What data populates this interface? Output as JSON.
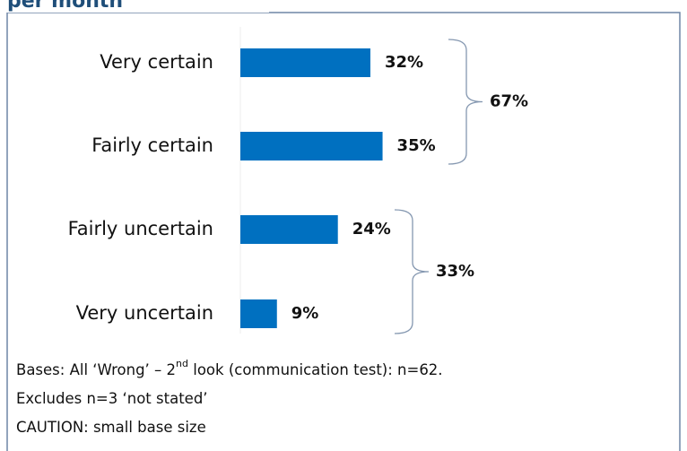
{
  "chart_data": {
    "type": "bar",
    "orientation": "horizontal",
    "title": "per month",
    "categories": [
      "Very certain",
      "Fairly certain",
      "Fairly uncertain",
      "Very uncertain"
    ],
    "values": [
      32,
      35,
      24,
      9
    ],
    "value_labels": [
      "32%",
      "35%",
      "24%",
      "9%"
    ],
    "color": "#0070c0",
    "brackets": {
      "values": [
        67,
        33
      ],
      "value_labels": [
        "67%",
        "33%"
      ]
    },
    "notes": [
      {
        "text": "Bases:  All ‘Wrong’ – 2",
        "superscript": "nd",
        "rest": " look (communication test):  n=62."
      },
      {
        "text": "Excludes n=3 ‘not stated’"
      },
      {
        "text": "CAUTION: small base size"
      }
    ]
  }
}
